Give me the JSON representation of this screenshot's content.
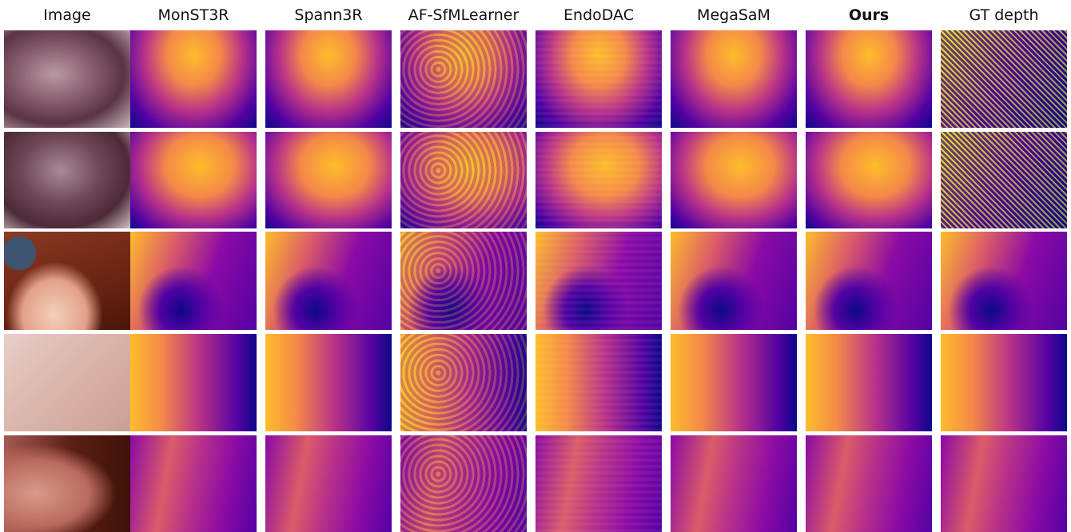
{
  "header": {
    "columns": [
      "Image",
      "MonST3R",
      "Spann3R",
      "AF-SfMLearner",
      "EndoDAC",
      "MegaSaM",
      "Ours",
      "GT depth"
    ]
  }
}
